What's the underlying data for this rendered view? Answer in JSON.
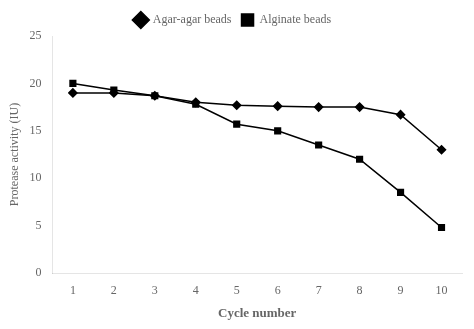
{
  "chart_data": {
    "type": "line",
    "x_label": "Cycle number",
    "y_label": "Protease activity (IU)",
    "x": [
      1,
      2,
      3,
      4,
      5,
      6,
      7,
      8,
      9,
      10
    ],
    "series": [
      {
        "name": "Agar-agar beads",
        "color": "#000000",
        "marker": "diamond",
        "values": [
          19.0,
          19.0,
          18.7,
          18.0,
          17.7,
          17.6,
          17.5,
          17.5,
          16.7,
          13.0
        ]
      },
      {
        "name": "Alginate beads",
        "color": "#000000",
        "marker": "square",
        "values": [
          20.0,
          19.3,
          18.7,
          17.8,
          15.7,
          15.0,
          13.5,
          12.0,
          8.5,
          4.8
        ]
      }
    ],
    "xlim": [
      0.5,
      10.5
    ],
    "xticks": [
      1,
      2,
      3,
      4,
      5,
      6,
      7,
      8,
      9,
      10
    ],
    "ylim": [
      0,
      25
    ],
    "yticks": [
      0,
      5,
      10,
      15,
      20,
      25
    ],
    "grid": false,
    "legend": "top"
  }
}
